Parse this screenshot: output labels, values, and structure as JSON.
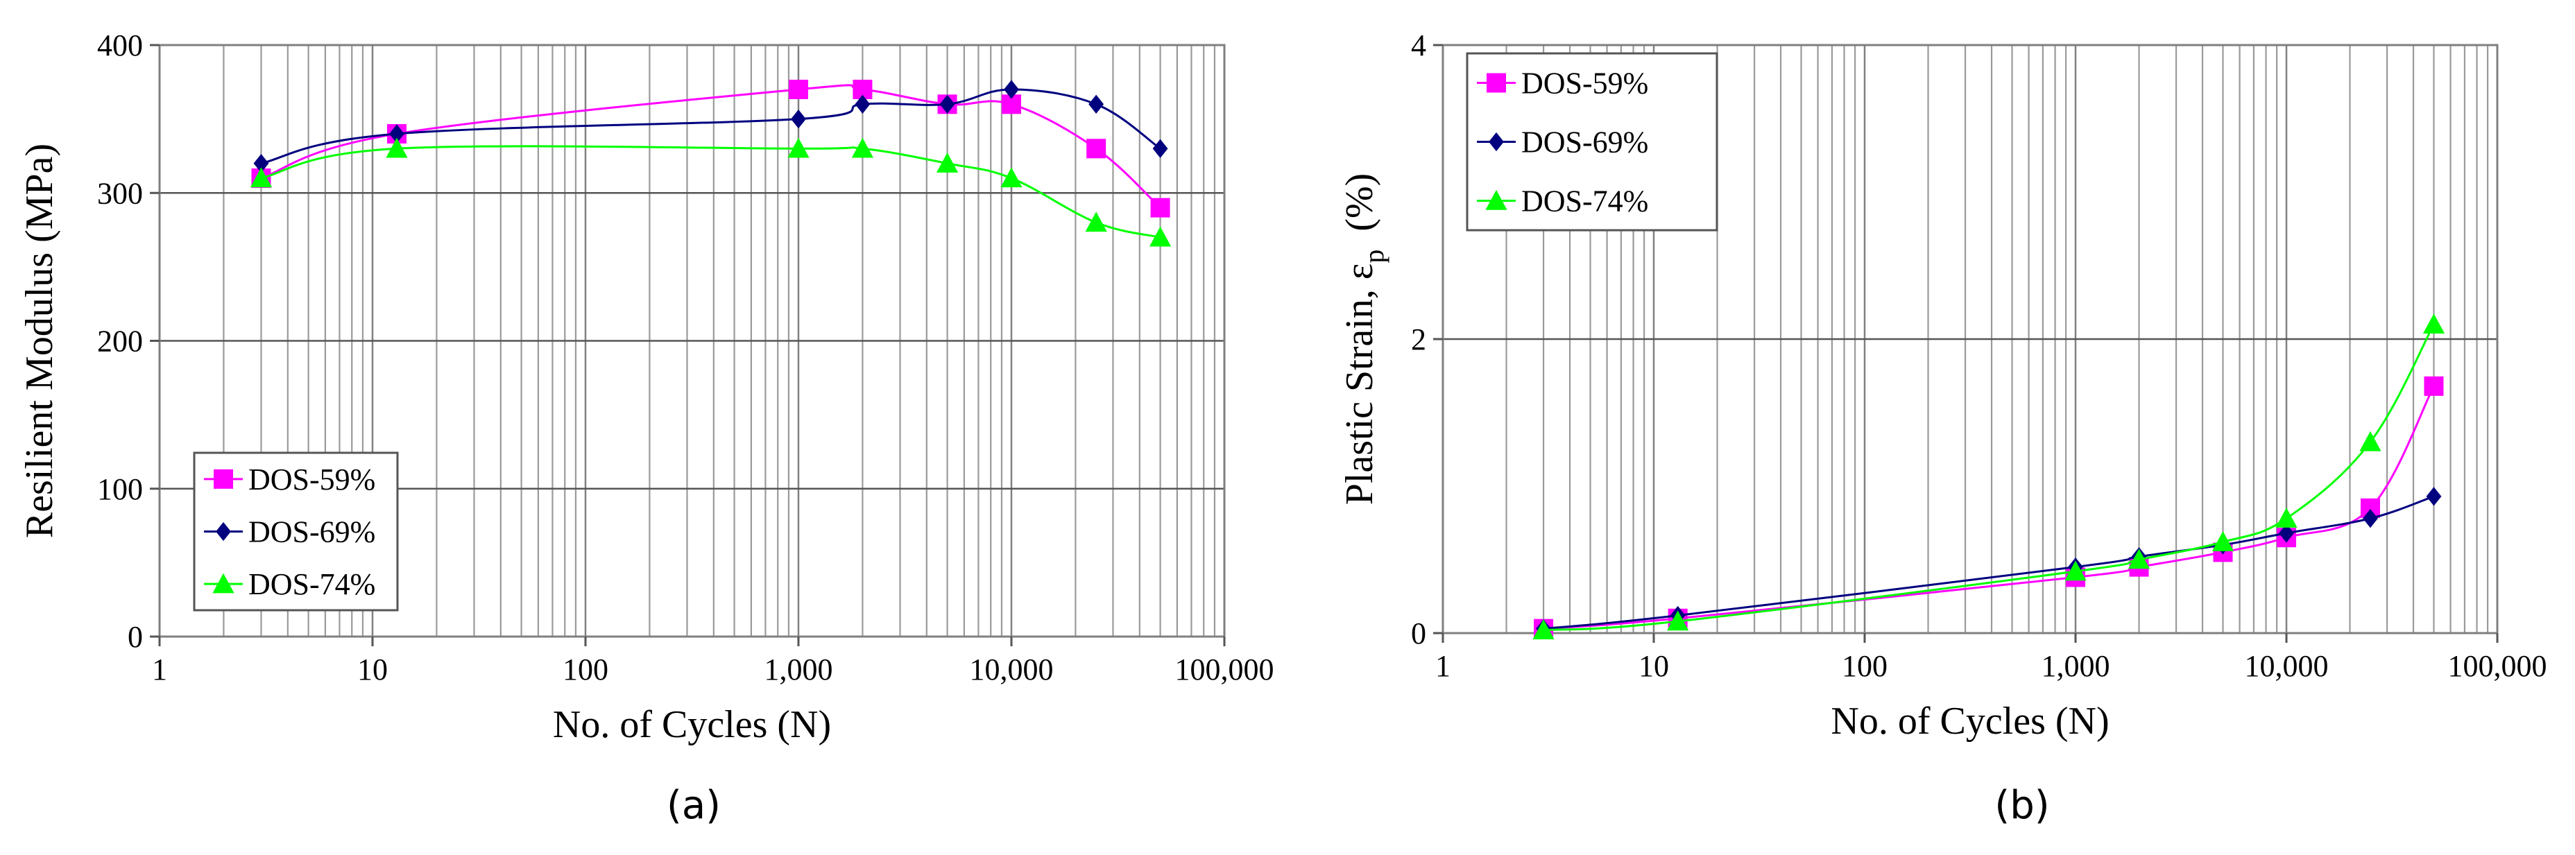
{
  "chart_data": [
    {
      "type": "line",
      "panel_label": "(a)",
      "xlabel": "No. of Cycles (N)",
      "ylabel": "Resilient Modulus (MPa)",
      "xscale": "log",
      "xlim": [
        1,
        100000
      ],
      "ylim": [
        0,
        400
      ],
      "xticks": [
        1,
        10,
        100,
        1000,
        10000,
        100000
      ],
      "xtick_labels": [
        "1",
        "10",
        "100",
        "1,000",
        "10,000",
        "100,000"
      ],
      "yticks": [
        0,
        100,
        200,
        300,
        400
      ],
      "ytick_labels": [
        "0",
        "100",
        "200",
        "300",
        "400"
      ],
      "grid": true,
      "legend_position": "bottom-left",
      "series": [
        {
          "name": "DOS-59%",
          "color": "#ff00ff",
          "marker": "square",
          "x": [
            3,
            13,
            1000,
            2000,
            5000,
            10000,
            25000,
            50000
          ],
          "y": [
            310,
            340,
            370,
            370,
            360,
            360,
            330,
            290
          ]
        },
        {
          "name": "DOS-69%",
          "color": "#00007f",
          "marker": "diamond",
          "x": [
            3,
            13,
            1000,
            2000,
            5000,
            10000,
            25000,
            50000
          ],
          "y": [
            320,
            340,
            350,
            360,
            360,
            370,
            360,
            330
          ]
        },
        {
          "name": "DOS-74%",
          "color": "#00ff00",
          "marker": "triangle",
          "x": [
            3,
            13,
            1000,
            2000,
            5000,
            10000,
            25000,
            50000
          ],
          "y": [
            310,
            330,
            330,
            330,
            320,
            310,
            280,
            270
          ]
        }
      ]
    },
    {
      "type": "line",
      "panel_label": "(b)",
      "xlabel": "No. of Cycles (N)",
      "ylabel_main": "Plastic Strain, ε",
      "ylabel_sub": "p",
      "ylabel_unit": "(%)",
      "xscale": "log",
      "xlim": [
        1,
        100000
      ],
      "ylim": [
        0,
        4
      ],
      "xticks": [
        1,
        10,
        100,
        1000,
        10000,
        100000
      ],
      "xtick_labels": [
        "1",
        "10",
        "100",
        "1,000",
        "10,000",
        "100,000"
      ],
      "yticks": [
        0,
        2,
        4
      ],
      "ytick_labels": [
        "0",
        "2",
        "4"
      ],
      "grid": true,
      "legend_position": "top-left",
      "series": [
        {
          "name": "DOS-59%",
          "color": "#ff00ff",
          "marker": "square",
          "x": [
            3,
            13,
            1000,
            2000,
            5000,
            10000,
            25000,
            50000
          ],
          "y": [
            0.03,
            0.1,
            0.38,
            0.45,
            0.55,
            0.65,
            0.85,
            1.68
          ]
        },
        {
          "name": "DOS-69%",
          "color": "#00007f",
          "marker": "diamond",
          "x": [
            3,
            13,
            1000,
            2000,
            5000,
            10000,
            25000,
            50000
          ],
          "y": [
            0.03,
            0.12,
            0.45,
            0.52,
            0.6,
            0.68,
            0.78,
            0.93
          ]
        },
        {
          "name": "DOS-74%",
          "color": "#00ff00",
          "marker": "triangle",
          "x": [
            3,
            13,
            1000,
            2000,
            5000,
            10000,
            25000,
            50000
          ],
          "y": [
            0.02,
            0.08,
            0.42,
            0.5,
            0.62,
            0.78,
            1.3,
            2.1
          ]
        }
      ]
    }
  ]
}
